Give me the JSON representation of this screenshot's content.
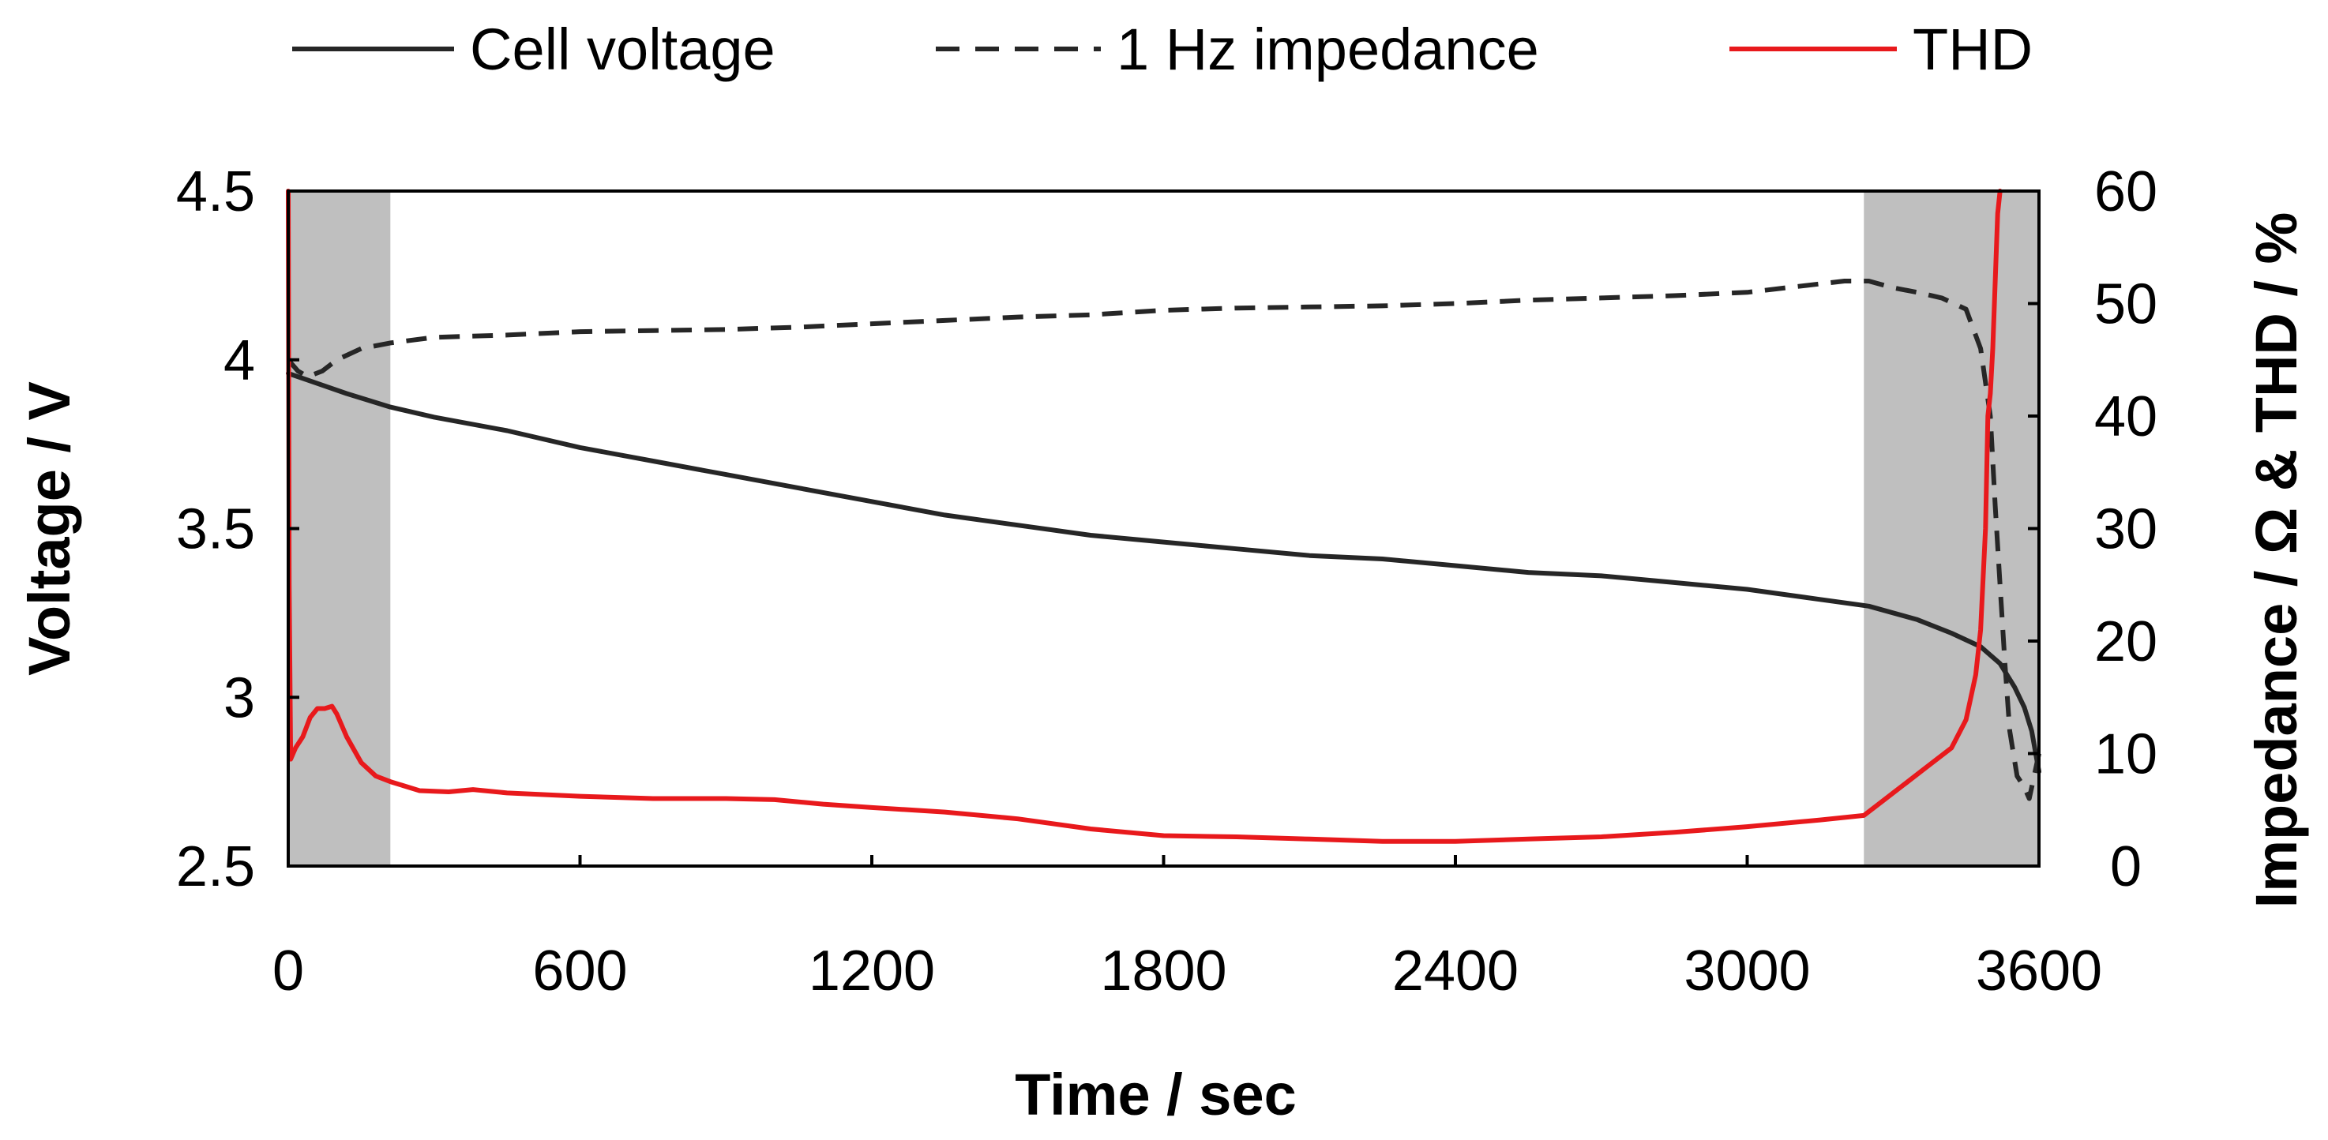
{
  "chart_data": {
    "type": "line",
    "title": "",
    "xlabel": "Time / sec",
    "ylabel": "Voltage / V",
    "y2label": "Impedance / Ω & THD / %",
    "xlim": [
      0,
      3600
    ],
    "ylim": [
      2.5,
      4.5
    ],
    "y2lim": [
      0,
      60
    ],
    "x_ticks": [
      "0",
      "600",
      "1200",
      "1800",
      "2400",
      "3000",
      "3600"
    ],
    "y_ticks": [
      "2.5",
      "3",
      "3.5",
      "4",
      "4.5"
    ],
    "y2_ticks": [
      "0",
      "10",
      "20",
      "30",
      "40",
      "50",
      "60"
    ],
    "legend_position": "top",
    "grid": false,
    "shaded_regions": [
      {
        "x_start": 0,
        "x_end": 210,
        "color": "#bfbfbf"
      },
      {
        "x_start": 3240,
        "x_end": 3600,
        "color": "#bfbfbf"
      }
    ],
    "series": [
      {
        "name": "Cell voltage",
        "axis": "left",
        "color": "#262626",
        "dash": "solid",
        "points": [
          [
            0,
            3.96
          ],
          [
            60,
            3.93
          ],
          [
            120,
            3.9
          ],
          [
            210,
            3.86
          ],
          [
            300,
            3.83
          ],
          [
            450,
            3.79
          ],
          [
            600,
            3.74
          ],
          [
            750,
            3.7
          ],
          [
            900,
            3.66
          ],
          [
            1050,
            3.62
          ],
          [
            1200,
            3.58
          ],
          [
            1350,
            3.54
          ],
          [
            1500,
            3.51
          ],
          [
            1650,
            3.48
          ],
          [
            1800,
            3.46
          ],
          [
            1950,
            3.44
          ],
          [
            2100,
            3.42
          ],
          [
            2250,
            3.41
          ],
          [
            2400,
            3.39
          ],
          [
            2550,
            3.37
          ],
          [
            2700,
            3.36
          ],
          [
            2850,
            3.34
          ],
          [
            3000,
            3.32
          ],
          [
            3150,
            3.29
          ],
          [
            3250,
            3.27
          ],
          [
            3350,
            3.23
          ],
          [
            3420,
            3.19
          ],
          [
            3480,
            3.15
          ],
          [
            3520,
            3.1
          ],
          [
            3550,
            3.03
          ],
          [
            3570,
            2.97
          ],
          [
            3585,
            2.9
          ],
          [
            3595,
            2.82
          ],
          [
            3600,
            2.78
          ]
        ]
      },
      {
        "name": "1 Hz impedance",
        "axis": "right",
        "color": "#262626",
        "dash": "dashed",
        "points": [
          [
            0,
            45
          ],
          [
            20,
            44
          ],
          [
            40,
            43.5
          ],
          [
            70,
            44
          ],
          [
            100,
            45
          ],
          [
            150,
            46
          ],
          [
            210,
            46.5
          ],
          [
            300,
            47
          ],
          [
            450,
            47.2
          ],
          [
            600,
            47.5
          ],
          [
            750,
            47.6
          ],
          [
            900,
            47.7
          ],
          [
            1050,
            47.9
          ],
          [
            1200,
            48.2
          ],
          [
            1350,
            48.5
          ],
          [
            1500,
            48.8
          ],
          [
            1650,
            49
          ],
          [
            1800,
            49.4
          ],
          [
            1950,
            49.6
          ],
          [
            2100,
            49.7
          ],
          [
            2250,
            49.8
          ],
          [
            2400,
            50
          ],
          [
            2550,
            50.3
          ],
          [
            2700,
            50.5
          ],
          [
            2850,
            50.7
          ],
          [
            3000,
            51
          ],
          [
            3100,
            51.5
          ],
          [
            3200,
            52
          ],
          [
            3250,
            52
          ],
          [
            3300,
            51.4
          ],
          [
            3350,
            51
          ],
          [
            3400,
            50.5
          ],
          [
            3450,
            49.5
          ],
          [
            3480,
            46
          ],
          [
            3500,
            40
          ],
          [
            3510,
            32
          ],
          [
            3520,
            25
          ],
          [
            3530,
            18
          ],
          [
            3540,
            12
          ],
          [
            3555,
            8
          ],
          [
            3570,
            7
          ],
          [
            3580,
            6
          ],
          [
            3585,
            7
          ],
          [
            3595,
            9
          ],
          [
            3600,
            10
          ]
        ]
      },
      {
        "name": "THD",
        "axis": "right",
        "color": "#e8191c",
        "dash": "solid",
        "points": [
          [
            0,
            60
          ],
          [
            2,
            25
          ],
          [
            5,
            9.5
          ],
          [
            15,
            10.5
          ],
          [
            30,
            11.5
          ],
          [
            45,
            13.2
          ],
          [
            60,
            14
          ],
          [
            75,
            14
          ],
          [
            90,
            14.2
          ],
          [
            100,
            13.5
          ],
          [
            120,
            11.5
          ],
          [
            150,
            9.2
          ],
          [
            180,
            8
          ],
          [
            210,
            7.5
          ],
          [
            270,
            6.7
          ],
          [
            330,
            6.6
          ],
          [
            380,
            6.8
          ],
          [
            450,
            6.5
          ],
          [
            600,
            6.2
          ],
          [
            750,
            6
          ],
          [
            900,
            6
          ],
          [
            1000,
            5.9
          ],
          [
            1100,
            5.5
          ],
          [
            1200,
            5.2
          ],
          [
            1350,
            4.8
          ],
          [
            1500,
            4.2
          ],
          [
            1650,
            3.3
          ],
          [
            1800,
            2.7
          ],
          [
            1950,
            2.6
          ],
          [
            2100,
            2.4
          ],
          [
            2250,
            2.2
          ],
          [
            2400,
            2.2
          ],
          [
            2550,
            2.4
          ],
          [
            2700,
            2.6
          ],
          [
            2850,
            3
          ],
          [
            3000,
            3.5
          ],
          [
            3150,
            4.1
          ],
          [
            3240,
            4.5
          ],
          [
            3300,
            6.5
          ],
          [
            3360,
            8.5
          ],
          [
            3420,
            10.5
          ],
          [
            3450,
            13
          ],
          [
            3470,
            17
          ],
          [
            3480,
            21
          ],
          [
            3490,
            30
          ],
          [
            3495,
            40
          ],
          [
            3500,
            42
          ],
          [
            3505,
            46
          ],
          [
            3510,
            52
          ],
          [
            3515,
            58
          ],
          [
            3520,
            60
          ]
        ]
      }
    ]
  }
}
